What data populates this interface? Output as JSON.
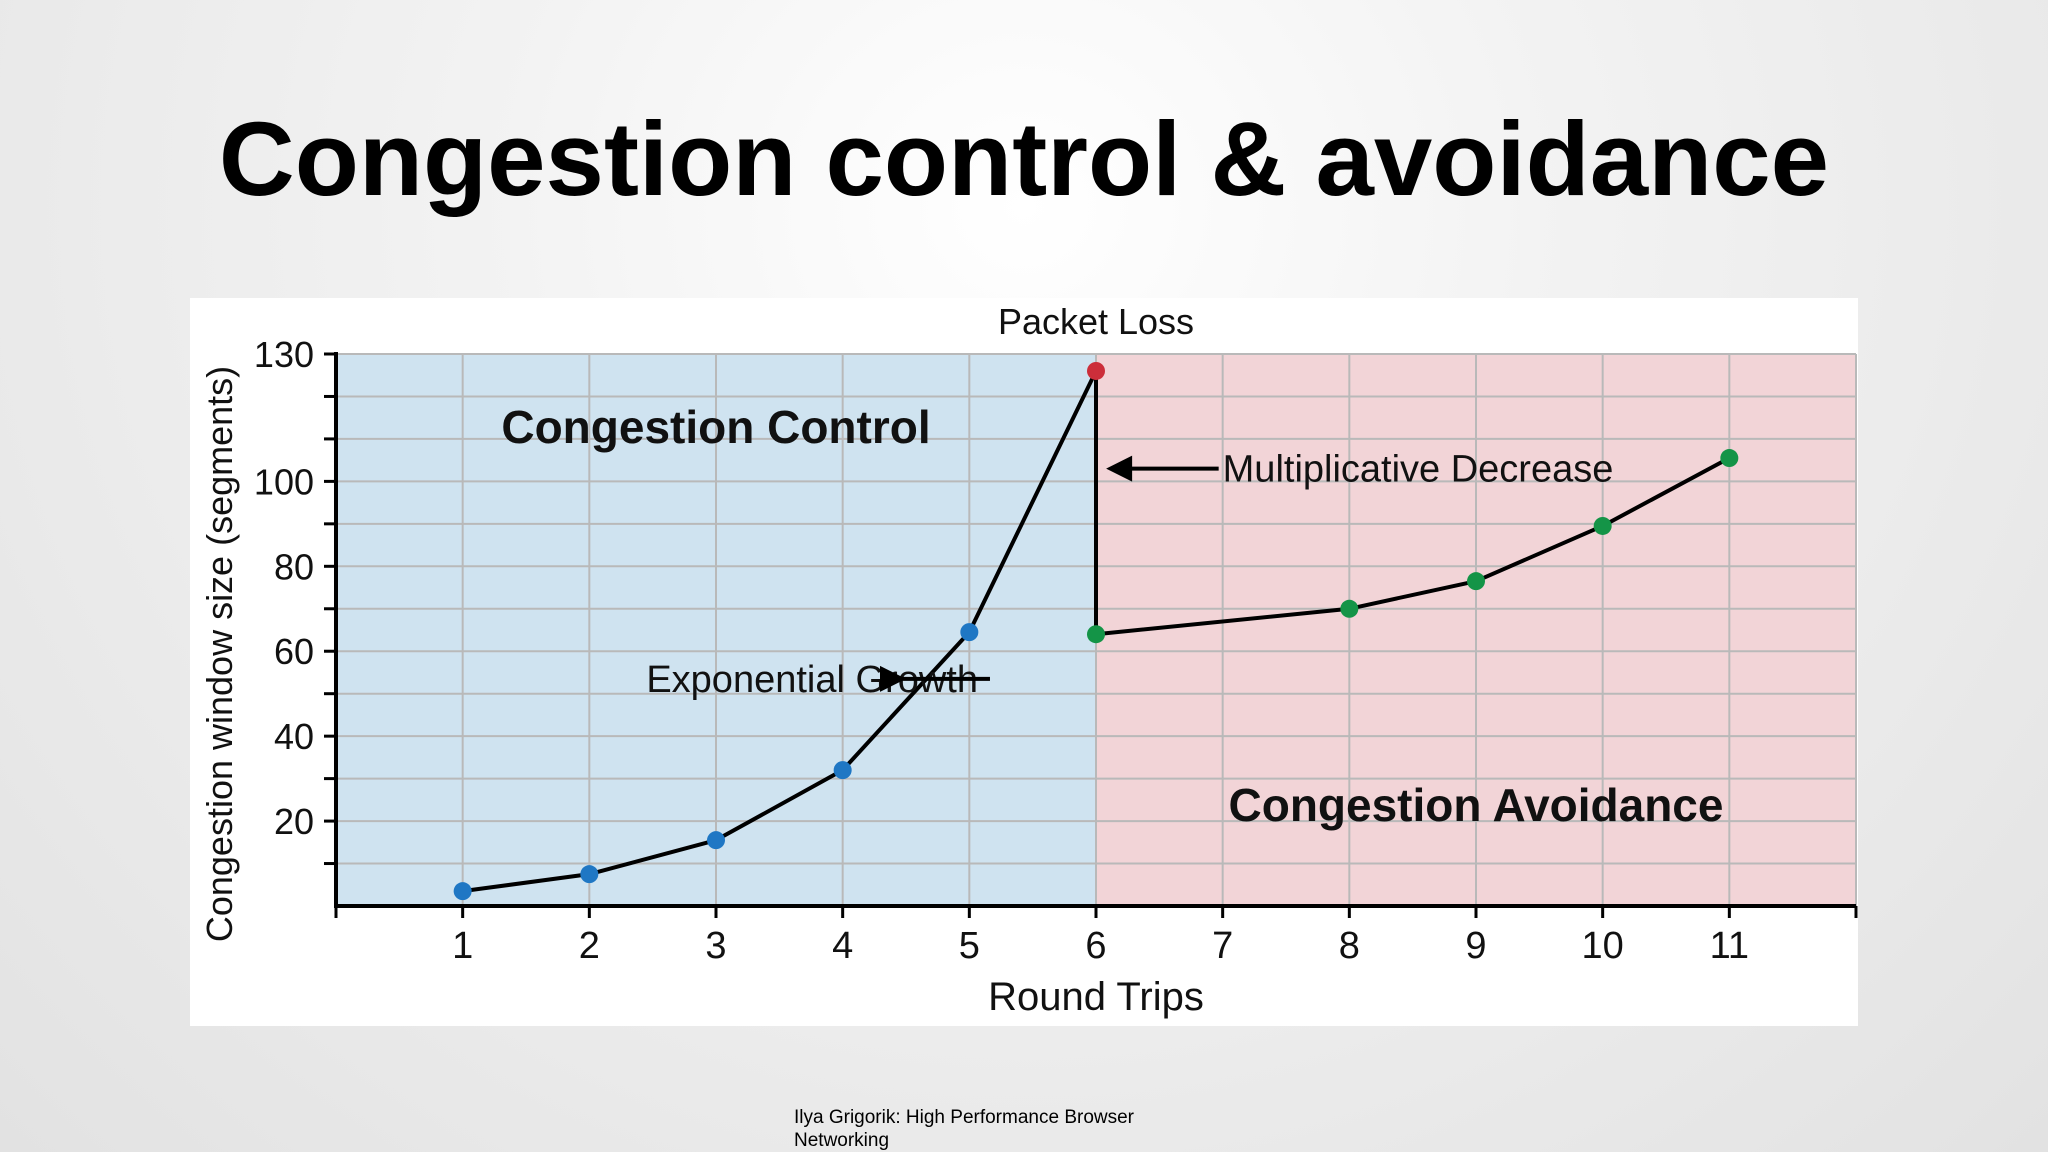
{
  "slide": {
    "title": "Congestion control & avoidance",
    "caption": "Ilya Grigorik: High Performance Browser Networking"
  },
  "chart_data": {
    "type": "line",
    "title": "Packet Loss",
    "xlabel": "Round Trips",
    "ylabel": "Congestion window size (segments)",
    "xlim": [
      0,
      12
    ],
    "ylim": [
      0,
      130
    ],
    "xticks": [
      1,
      2,
      3,
      4,
      5,
      6,
      7,
      8,
      9,
      10,
      11
    ],
    "yticks": [
      20,
      40,
      60,
      80,
      100,
      130
    ],
    "grid": true,
    "regions": [
      {
        "label": "Congestion Control",
        "x_start": 0,
        "x_end": 6,
        "color": "#cfe3f0"
      },
      {
        "label": "Congestion Avoidance",
        "x_start": 6,
        "x_end": 12,
        "color": "#f2d4d7"
      }
    ],
    "series": [
      {
        "color": "#000000",
        "points": [
          {
            "x": 1,
            "y": 3.5,
            "color": "#1f77c4"
          },
          {
            "x": 2,
            "y": 7.5,
            "color": "#1f77c4"
          },
          {
            "x": 3,
            "y": 15.5,
            "color": "#1f77c4"
          },
          {
            "x": 4,
            "y": 32,
            "color": "#1f77c4"
          },
          {
            "x": 5,
            "y": 64.5,
            "color": "#1f77c4"
          },
          {
            "x": 6,
            "y": 126,
            "color": "#cc2e3a"
          },
          {
            "x": 6,
            "y": 64,
            "color": "#149447"
          },
          {
            "x": 8,
            "y": 70,
            "color": "#149447"
          },
          {
            "x": 9,
            "y": 76.5,
            "color": "#149447"
          },
          {
            "x": 10,
            "y": 89.5,
            "color": "#149447"
          },
          {
            "x": 11,
            "y": 105.5,
            "color": "#149447"
          }
        ]
      }
    ],
    "annotations": [
      {
        "text": "Exponential Growth",
        "x": 2.45,
        "y": 53.5,
        "arrow_to": [
          4.5,
          53.5
        ]
      },
      {
        "text": "Multiplicative Decrease",
        "x": 7.0,
        "y": 103,
        "arrow_to": [
          6.08,
          103
        ]
      }
    ],
    "colors": {
      "control_marker": "#1f77c4",
      "loss_marker": "#cc2e3a",
      "avoidance_marker": "#149447",
      "grid": "#b9b9b9",
      "line": "#000000"
    }
  }
}
